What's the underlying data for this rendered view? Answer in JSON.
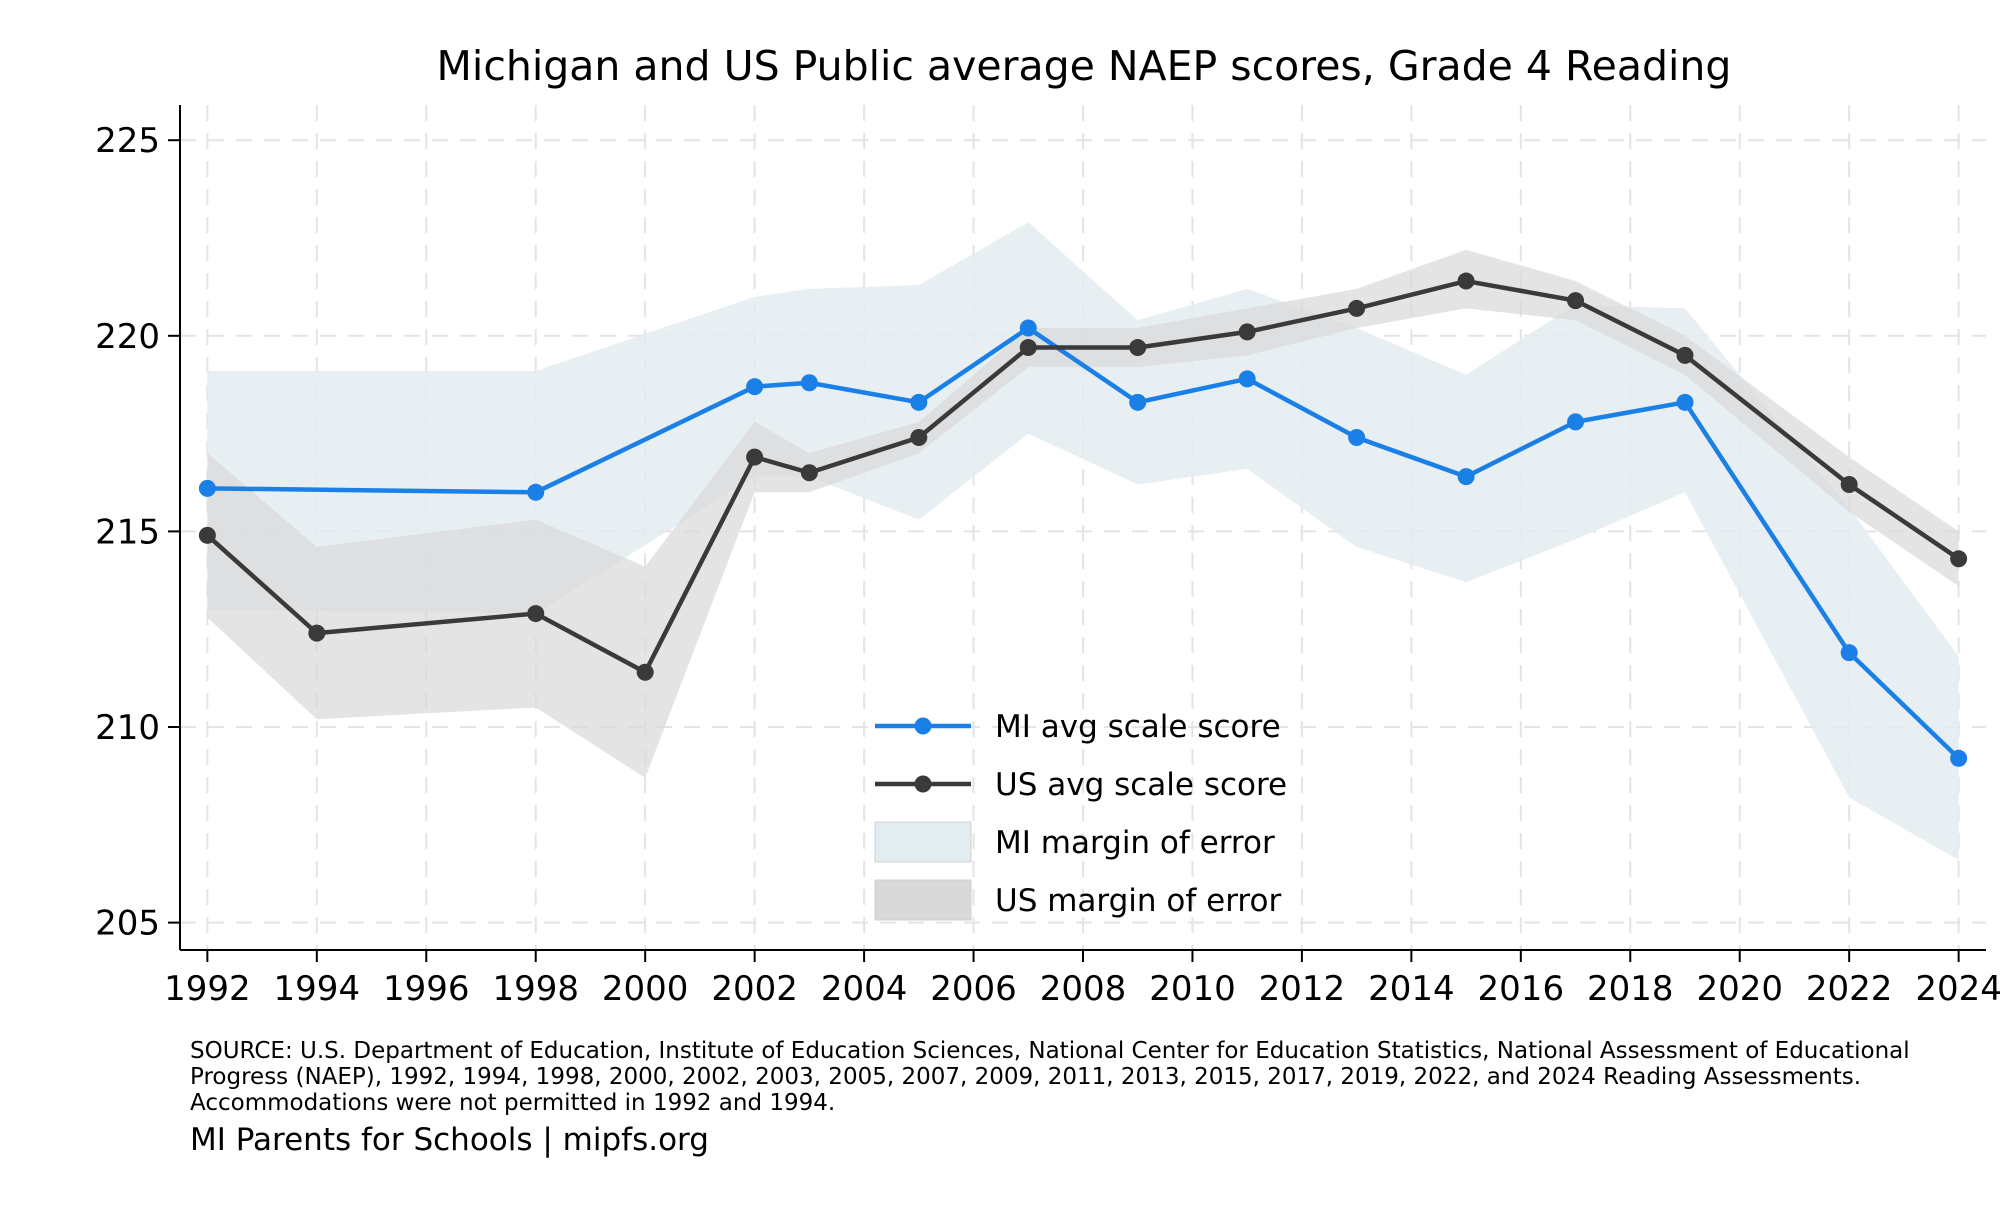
{
  "chart_data": {
    "type": "line",
    "title": "Michigan and US Public average NAEP scores, Grade 4 Reading",
    "xlabel": "",
    "ylabel": "",
    "xlim": [
      1991.5,
      2024.5
    ],
    "ylim": [
      204.3,
      225.9
    ],
    "x_ticks": [
      1992,
      1994,
      1996,
      1998,
      2000,
      2002,
      2004,
      2006,
      2008,
      2010,
      2012,
      2014,
      2016,
      2018,
      2020,
      2022,
      2024
    ],
    "y_ticks": [
      205,
      210,
      215,
      220,
      225
    ],
    "grid": true,
    "legend_position": "bottom-center",
    "series": [
      {
        "name": "MI avg scale score",
        "color": "#1a7fe6",
        "x": [
          1992,
          1998,
          2002,
          2003,
          2005,
          2007,
          2009,
          2011,
          2013,
          2015,
          2017,
          2019,
          2022,
          2024
        ],
        "values": [
          216.1,
          216.0,
          218.7,
          218.8,
          218.3,
          220.2,
          218.3,
          218.9,
          217.4,
          216.4,
          217.8,
          218.3,
          211.9,
          209.2
        ]
      },
      {
        "name": "US avg scale score",
        "color": "#3a3a3a",
        "x": [
          1992,
          1994,
          1998,
          2000,
          2002,
          2003,
          2005,
          2007,
          2009,
          2011,
          2013,
          2015,
          2017,
          2019,
          2022,
          2024
        ],
        "values": [
          214.9,
          212.4,
          212.9,
          211.4,
          216.9,
          216.5,
          217.4,
          219.7,
          219.7,
          220.1,
          220.7,
          221.4,
          220.9,
          219.5,
          216.2,
          214.3
        ]
      }
    ],
    "bands": [
      {
        "name": "MI margin of error",
        "color": "#e3ecf1",
        "x": [
          1992,
          1998,
          2002,
          2003,
          2005,
          2007,
          2009,
          2011,
          2013,
          2015,
          2017,
          2019,
          2022,
          2024
        ],
        "upper": [
          219.1,
          219.1,
          221.0,
          221.2,
          221.3,
          222.9,
          220.4,
          221.2,
          220.2,
          219.0,
          220.8,
          220.7,
          215.6,
          211.8
        ],
        "lower": [
          213.0,
          212.9,
          216.4,
          216.4,
          215.3,
          217.5,
          216.2,
          216.6,
          214.6,
          213.7,
          214.8,
          216.0,
          208.2,
          206.6
        ]
      },
      {
        "name": "US margin of error",
        "color": "#d9d9d9",
        "x": [
          1992,
          1994,
          1998,
          2000,
          2002,
          2003,
          2005,
          2007,
          2009,
          2011,
          2013,
          2015,
          2017,
          2019,
          2022,
          2024
        ],
        "upper": [
          217.0,
          214.6,
          215.3,
          214.1,
          217.8,
          217.0,
          217.8,
          220.2,
          220.2,
          220.7,
          221.2,
          222.2,
          221.4,
          220.0,
          216.9,
          215.0
        ],
        "lower": [
          212.8,
          210.2,
          210.5,
          208.7,
          216.0,
          216.0,
          217.0,
          219.2,
          219.2,
          219.5,
          220.2,
          220.7,
          220.4,
          219.0,
          215.5,
          213.6
        ]
      }
    ]
  },
  "footer": {
    "source_lines": [
      "SOURCE: U.S. Department of Education, Institute of Education Sciences, National Center for Education Statistics, National Assessment of Educational",
      "Progress (NAEP), 1992, 1994, 1998, 2000, 2002, 2003, 2005, 2007, 2009, 2011, 2013, 2015, 2017, 2019, 2022, and 2024 Reading Assessments.",
      "Accommodations were not permitted in 1992 and 1994."
    ],
    "credit": "MI Parents for Schools | mipfs.org"
  }
}
